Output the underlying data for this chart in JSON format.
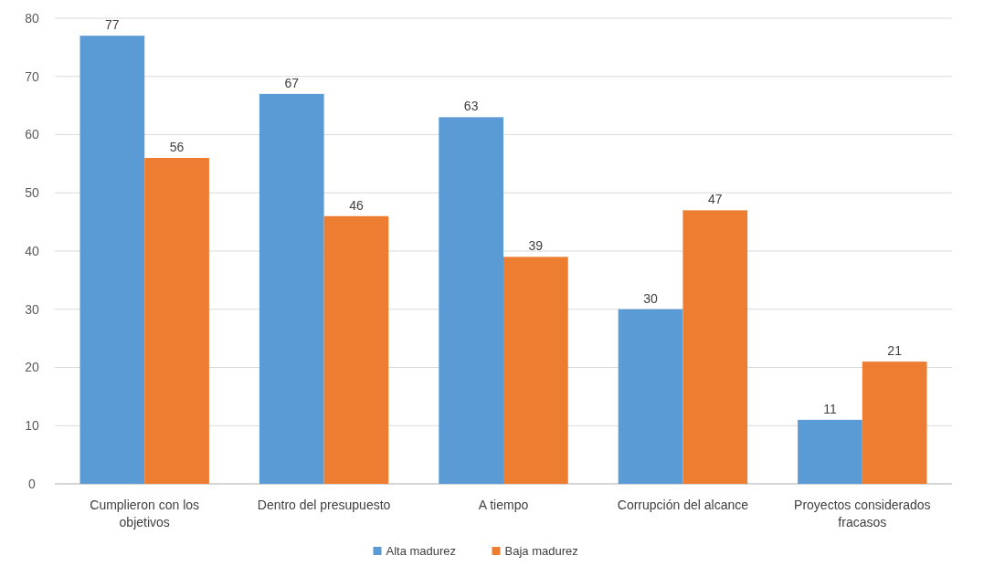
{
  "chart_data": {
    "type": "bar",
    "categories": [
      "Cumplieron con los objetivos",
      "Dentro del presupuesto",
      "A tiempo",
      "Corrupción del alcance",
      "Proyectos considerados fracasos"
    ],
    "series": [
      {
        "name": "Alta madurez",
        "color": "#5b9bd5",
        "values": [
          77,
          67,
          63,
          30,
          11
        ]
      },
      {
        "name": "Baja madurez",
        "color": "#ed7d31",
        "values": [
          56,
          46,
          39,
          47,
          21
        ]
      }
    ],
    "ylim": [
      0,
      80
    ],
    "yticks": [
      0,
      10,
      20,
      30,
      40,
      50,
      60,
      70,
      80
    ],
    "grid": "y",
    "legend": "bottom",
    "data_labels": true
  }
}
